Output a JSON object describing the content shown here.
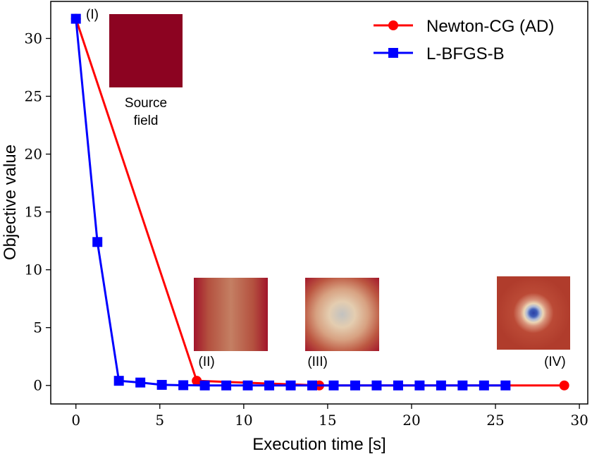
{
  "chart_data": {
    "type": "line",
    "title": "",
    "xlabel": "Execution time [s]",
    "ylabel": "Objective value",
    "xlim": [
      -1.5,
      30.5
    ],
    "ylim": [
      -1.6,
      33.2
    ],
    "xticks": [
      0,
      5,
      10,
      15,
      20,
      25,
      30
    ],
    "yticks": [
      0,
      5,
      10,
      15,
      20,
      25,
      30
    ],
    "grid": false,
    "legend_position": "top-right",
    "series": [
      {
        "name": "Newton-CG (AD)",
        "color": "#ff0000",
        "marker": "circle",
        "x": [
          0,
          7.2,
          14.5,
          29.1
        ],
        "y": [
          31.7,
          0.4,
          0.0,
          0.0
        ]
      },
      {
        "name": "L-BFGS-B",
        "color": "#0000ff",
        "marker": "square",
        "x": [
          0,
          1.28,
          2.56,
          3.84,
          5.12,
          6.4,
          7.68,
          8.96,
          10.24,
          11.52,
          12.8,
          14.08,
          15.36,
          16.64,
          17.92,
          19.2,
          20.48,
          21.76,
          23.04,
          24.32,
          25.6
        ],
        "y": [
          31.7,
          12.4,
          0.4,
          0.25,
          0.05,
          0.02,
          0.0,
          0.0,
          0.0,
          0.0,
          0.0,
          0.0,
          0.0,
          0.0,
          0.0,
          0.0,
          0.0,
          0.0,
          0.0,
          0.0,
          0.0
        ]
      }
    ],
    "annotations": [
      {
        "label": "(I)",
        "x": 0.6,
        "y": 31.7
      },
      {
        "label": "(II)",
        "x": 7.3,
        "y": 1.7
      },
      {
        "label": "(III)",
        "x": 13.8,
        "y": 1.7
      },
      {
        "label": "(IV)",
        "x": 27.9,
        "y": 1.7
      }
    ],
    "inset_caption": [
      "Source",
      "field"
    ]
  },
  "colors": {
    "source_field": "#8c0321",
    "field_edge": "#a0152a",
    "field_mid": "#c07d62",
    "field_light": "#e6cfb0",
    "field_center_light": "#c4c4c4",
    "field_blue": "#2f46a8",
    "field_bg4": "#b2402c"
  }
}
